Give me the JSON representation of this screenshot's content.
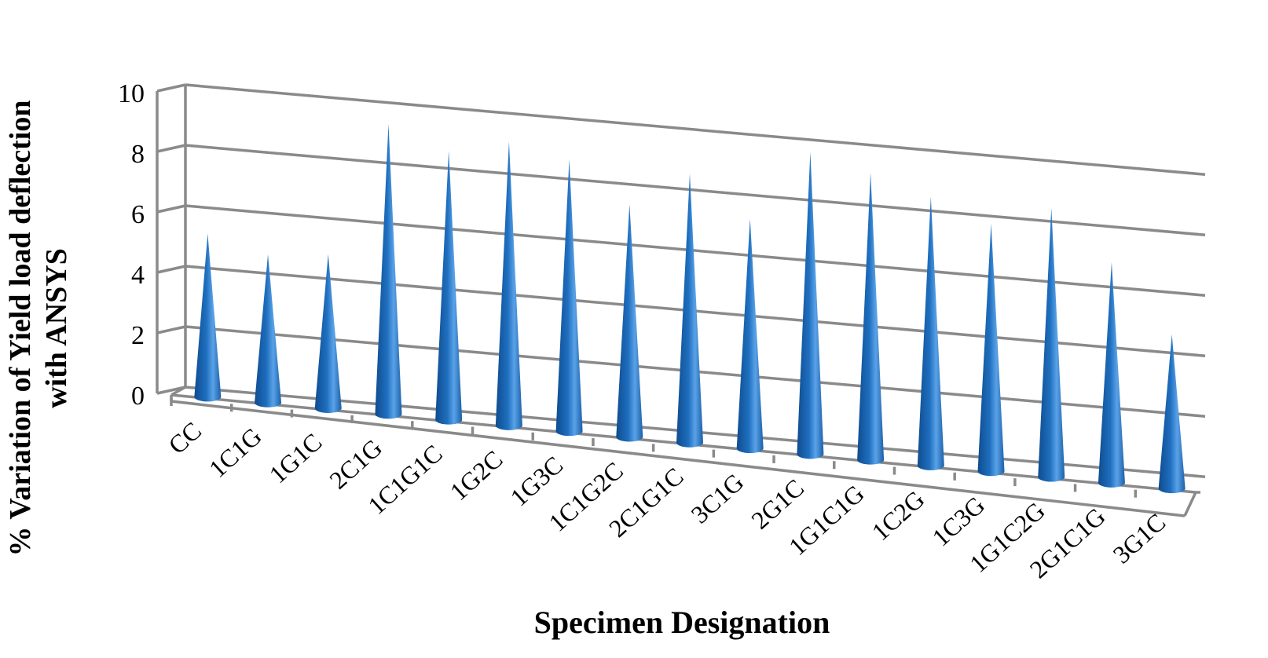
{
  "chart_data": {
    "type": "bar",
    "bar_shape": "3d-cone",
    "categories": [
      "CC",
      "1C1G",
      "1G1C",
      "2C1G",
      "1C1G1C",
      "1G2C",
      "1G3C",
      "1C1G2C",
      "2C1G1C",
      "3C1G",
      "2G1C",
      "1G1C1G",
      "1C2G",
      "1C3G",
      "1G1C2G",
      "2G1C1G",
      "3G1C"
    ],
    "values": [
      5.4,
      4.9,
      5.1,
      9.6,
      8.9,
      9.4,
      9.0,
      7.7,
      8.9,
      7.6,
      10.0,
      9.5,
      8.9,
      8.2,
      8.9,
      7.3,
      5.1
    ],
    "ylabel": "% Variation of Yield load deflection with ANSYS",
    "xlabel": "Specimen Designation",
    "ylim": [
      0,
      10
    ],
    "yticks": [
      "0",
      "2",
      "4",
      "6",
      "8",
      "10"
    ],
    "grid": true,
    "legend": "none",
    "colors": {
      "bar": "#1f6fbf",
      "bar_highlight": "#5aa2e8",
      "bar_shadow": "#0f4c8f",
      "grid": "#8a8a8a"
    }
  }
}
